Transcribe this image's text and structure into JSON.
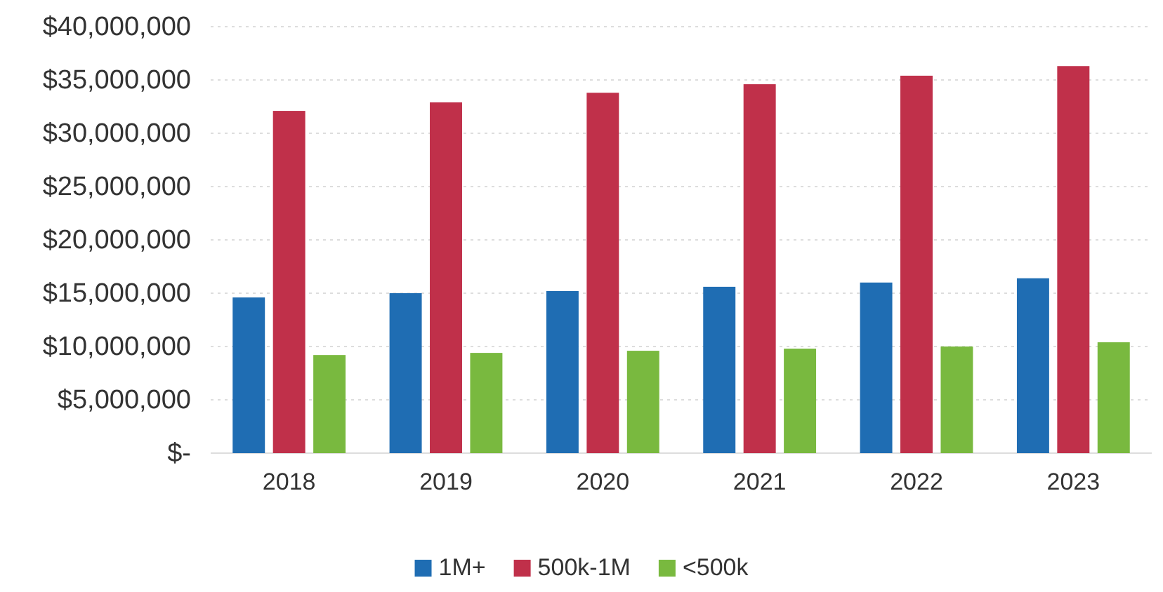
{
  "chart_data": {
    "type": "bar",
    "categories": [
      "2018",
      "2019",
      "2020",
      "2021",
      "2022",
      "2023"
    ],
    "series": [
      {
        "name": "1M+",
        "color": "#1f6db3",
        "values": [
          14600000,
          15000000,
          15200000,
          15600000,
          16000000,
          16400000
        ]
      },
      {
        "name": "500k-1M",
        "color": "#c0304a",
        "values": [
          32100000,
          32900000,
          33800000,
          34600000,
          35400000,
          36300000
        ]
      },
      {
        "name": "<500k",
        "color": "#79b93f",
        "values": [
          9200000,
          9400000,
          9600000,
          9800000,
          10000000,
          10400000
        ]
      }
    ],
    "ylim": [
      0,
      40000000
    ],
    "yticks": [
      {
        "value": 0,
        "label": "$-"
      },
      {
        "value": 5000000,
        "label": "$5,000,000"
      },
      {
        "value": 10000000,
        "label": "$10,000,000"
      },
      {
        "value": 15000000,
        "label": "$15,000,000"
      },
      {
        "value": 20000000,
        "label": "$20,000,000"
      },
      {
        "value": 25000000,
        "label": "$25,000,000"
      },
      {
        "value": 30000000,
        "label": "$30,000,000"
      },
      {
        "value": 35000000,
        "label": "$35,000,000"
      },
      {
        "value": 40000000,
        "label": "$40,000,000"
      }
    ],
    "grid": "y",
    "legend": "bottom"
  }
}
